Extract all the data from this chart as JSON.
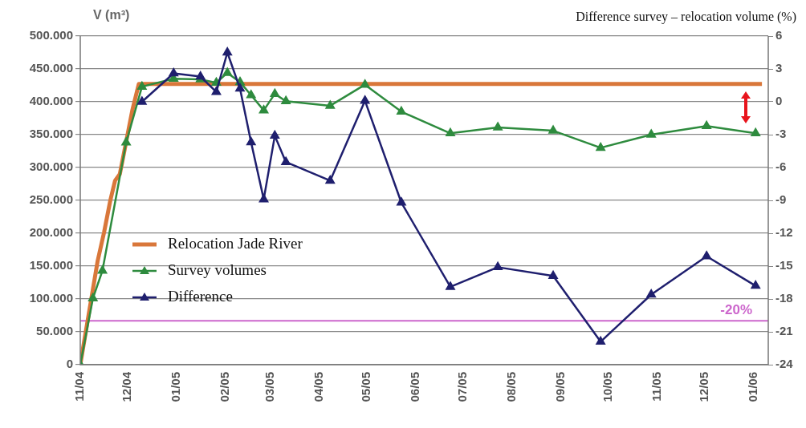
{
  "chart_data": {
    "type": "line",
    "ylabel": "V (m³)",
    "y2label": "Difference survey – relocation volume (%)",
    "xlim": [
      "2004-11-01",
      "2006-01-10"
    ],
    "xticks": [
      {
        "value": "2004-11",
        "label": "11/04"
      },
      {
        "value": "2004-12",
        "label": "12/04"
      },
      {
        "value": "2005-01",
        "label": "01/05"
      },
      {
        "value": "2005-02",
        "label": "02/05"
      },
      {
        "value": "2005-03",
        "label": "03/05"
      },
      {
        "value": "2005-04",
        "label": "04/05"
      },
      {
        "value": "2005-05",
        "label": "05/05"
      },
      {
        "value": "2005-06",
        "label": "06/05"
      },
      {
        "value": "2005-07",
        "label": "07/05"
      },
      {
        "value": "2005-08",
        "label": "08/05"
      },
      {
        "value": "2005-09",
        "label": "09/05"
      },
      {
        "value": "2005-10",
        "label": "10/05"
      },
      {
        "value": "2005-11",
        "label": "11/05"
      },
      {
        "value": "2005-12",
        "label": "12/05"
      },
      {
        "value": "2006-01",
        "label": "01/06"
      }
    ],
    "ylim": [
      0,
      500000
    ],
    "yticks": [
      0,
      {
        "value": 50000,
        "label": "50.000"
      },
      {
        "value": 100000,
        "label": "100.000"
      },
      {
        "value": 150000,
        "label": "150.000"
      },
      {
        "value": 200000,
        "label": "200.000"
      },
      {
        "value": 250000,
        "label": "250.000"
      },
      {
        "value": 300000,
        "label": "300.000"
      },
      {
        "value": 350000,
        "label": "350.000"
      },
      {
        "value": 400000,
        "label": "400.000"
      },
      {
        "value": 450000,
        "label": "450.000"
      },
      {
        "value": 500000,
        "label": "500.000"
      }
    ],
    "y2lim": [
      -24,
      6
    ],
    "y2ticks": [
      -24,
      -21,
      -18,
      -15,
      -12,
      -9,
      -6,
      -3,
      0,
      3,
      6
    ],
    "grid": "y",
    "legend": "left",
    "series": [
      {
        "name": "Relocation Jade River",
        "color": "#d9773a",
        "marker": "none",
        "x": [
          "2004-11-01",
          "2004-11-12",
          "2004-11-16",
          "2004-11-20",
          "2004-11-23",
          "2004-11-26",
          "2004-12-04",
          "2004-12-08",
          "2006-01-06"
        ],
        "values": [
          0,
          158000,
          201000,
          250000,
          280000,
          290000,
          388000,
          427000,
          427000
        ]
      },
      {
        "name": "Survey volumes",
        "color": "#2e8b3e",
        "marker": "triangle",
        "x": [
          "2004-11-01",
          "2004-11-09",
          "2004-11-15",
          "2004-11-30",
          "2004-12-10",
          "2004-12-30",
          "2005-01-16",
          "2005-01-26",
          "2005-02-02",
          "2005-02-10",
          "2005-02-17",
          "2005-02-25",
          "2005-03-04",
          "2005-03-11",
          "2005-04-08",
          "2005-04-30",
          "2005-05-23",
          "2005-06-23",
          "2005-07-23",
          "2005-08-27",
          "2005-09-26",
          "2005-10-28",
          "2005-12-02",
          "2006-01-02"
        ],
        "values": [
          0,
          101000,
          143000,
          338000,
          423000,
          435000,
          434000,
          429000,
          444000,
          430000,
          410000,
          387000,
          412000,
          401000,
          394000,
          426000,
          385000,
          352000,
          361000,
          356000,
          330000,
          350000,
          363000,
          352000
        ]
      },
      {
        "name": "Difference",
        "color": "#1f1f6e",
        "marker": "triangle",
        "axis": "y2",
        "x": [
          "2004-12-10",
          "2004-12-30",
          "2005-01-16",
          "2005-01-26",
          "2005-02-02",
          "2005-02-10",
          "2005-02-17",
          "2005-02-25",
          "2005-03-04",
          "2005-03-11",
          "2005-04-08",
          "2005-04-30",
          "2005-05-23",
          "2005-06-23",
          "2005-07-23",
          "2005-08-27",
          "2005-09-26",
          "2005-10-28",
          "2005-12-02",
          "2006-01-02"
        ],
        "values": [
          0,
          2.6,
          2.3,
          0.9,
          4.5,
          1.2,
          -3.7,
          -8.9,
          -3.1,
          -5.5,
          -7.2,
          0.1,
          -9.2,
          -16.9,
          -15.1,
          -15.9,
          -21.9,
          -17.6,
          -14.1,
          -16.8
        ]
      }
    ],
    "ref_lines": [
      {
        "axis": "y2",
        "value": -20,
        "label": "-20%",
        "color": "#cc66cc"
      }
    ]
  }
}
